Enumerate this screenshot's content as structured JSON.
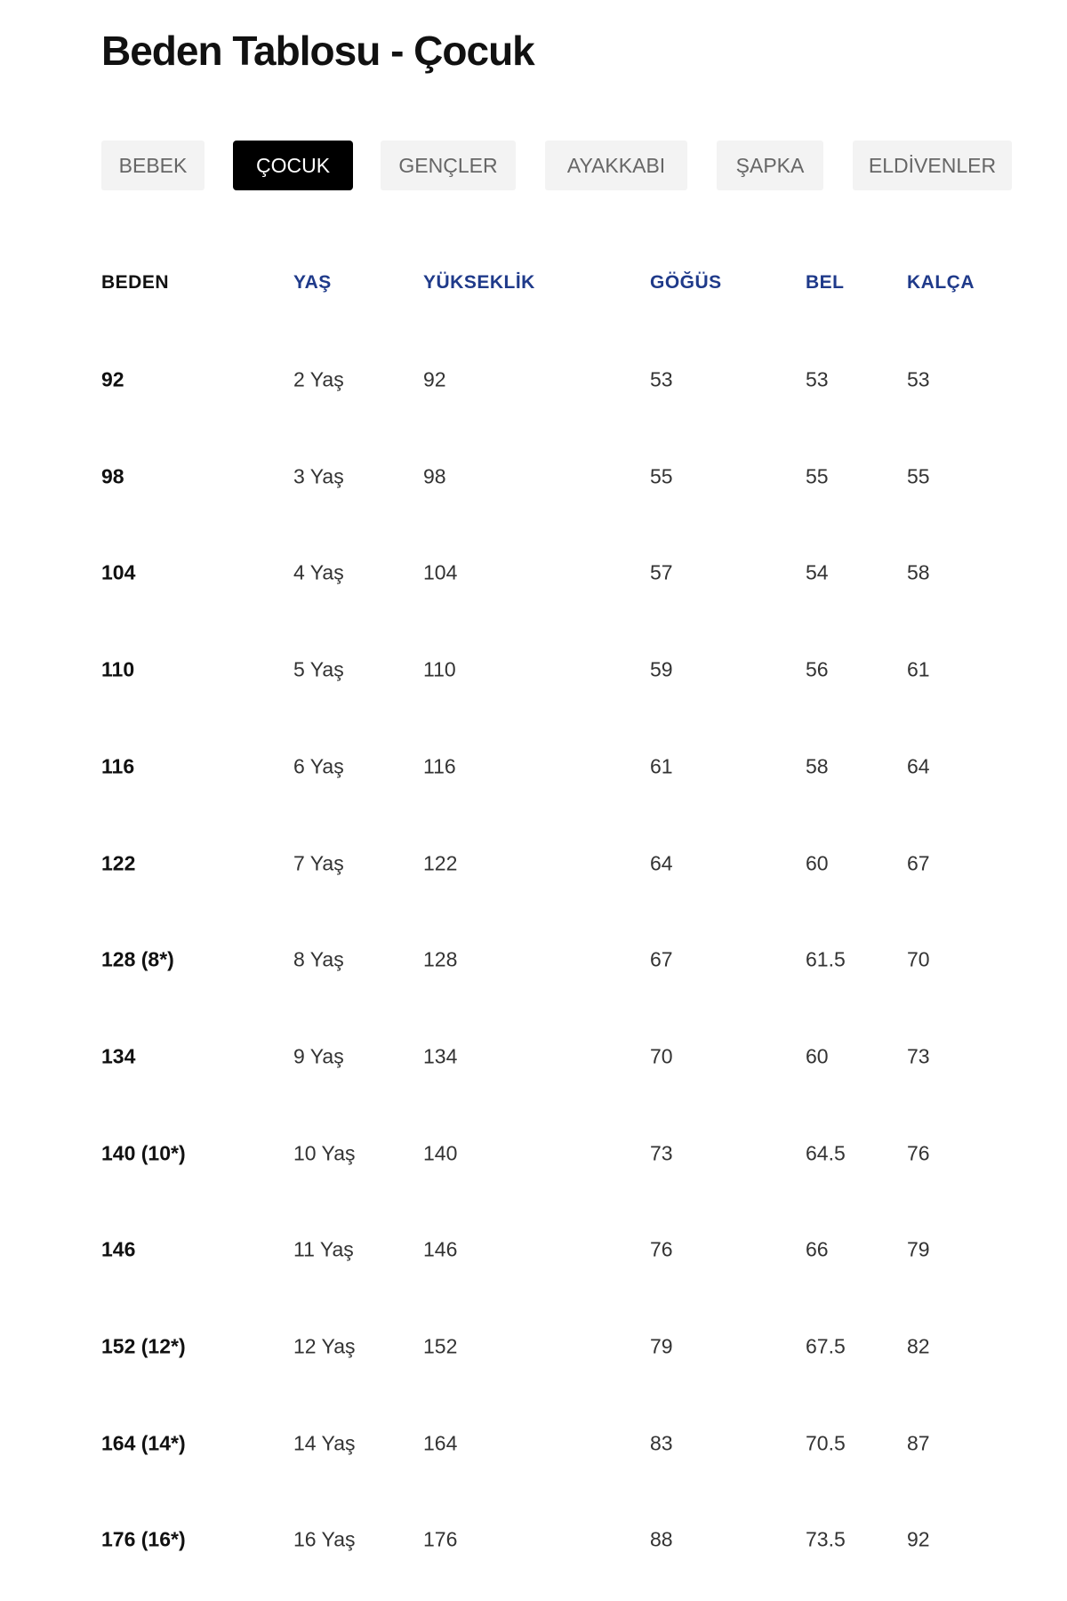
{
  "title": "Beden Tablosu - Çocuk",
  "tabs": [
    {
      "label": "BEBEK",
      "active": false
    },
    {
      "label": "ÇOCUK",
      "active": true
    },
    {
      "label": "GENÇLER",
      "active": false
    },
    {
      "label": "AYAKKABI",
      "active": false
    },
    {
      "label": "ŞAPKA",
      "active": false
    },
    {
      "label": "ELDİVENLER",
      "active": false
    }
  ],
  "colors": {
    "header_accent": "#1f3a8a",
    "active_tab_bg": "#000000",
    "tab_bg": "#f3f3f3"
  },
  "table": {
    "headers": [
      "BEDEN",
      "YAŞ",
      "YÜKSEKLİK",
      "GÖĞÜS",
      "BEL",
      "KALÇA"
    ],
    "rows": [
      [
        "92",
        "2 Yaş",
        "92",
        "53",
        "53",
        "53"
      ],
      [
        "98",
        "3 Yaş",
        "98",
        "55",
        "55",
        "55"
      ],
      [
        "104",
        "4 Yaş",
        "104",
        "57",
        "54",
        "58"
      ],
      [
        "110",
        "5 Yaş",
        "110",
        "59",
        "56",
        "61"
      ],
      [
        "116",
        "6 Yaş",
        "116",
        "61",
        "58",
        "64"
      ],
      [
        "122",
        "7 Yaş",
        "122",
        "64",
        "60",
        "67"
      ],
      [
        "128 (8*)",
        "8 Yaş",
        "128",
        "67",
        "61.5",
        "70"
      ],
      [
        "134",
        "9 Yaş",
        "134",
        "70",
        "60",
        "73"
      ],
      [
        "140 (10*)",
        "10 Yaş",
        "140",
        "73",
        "64.5",
        "76"
      ],
      [
        "146",
        "11 Yaş",
        "146",
        "76",
        "66",
        "79"
      ],
      [
        "152 (12*)",
        "12 Yaş",
        "152",
        "79",
        "67.5",
        "82"
      ],
      [
        "164 (14*)",
        "14 Yaş",
        "164",
        "83",
        "70.5",
        "87"
      ],
      [
        "176 (16*)",
        "16 Yaş",
        "176",
        "88",
        "73.5",
        "92"
      ]
    ]
  }
}
